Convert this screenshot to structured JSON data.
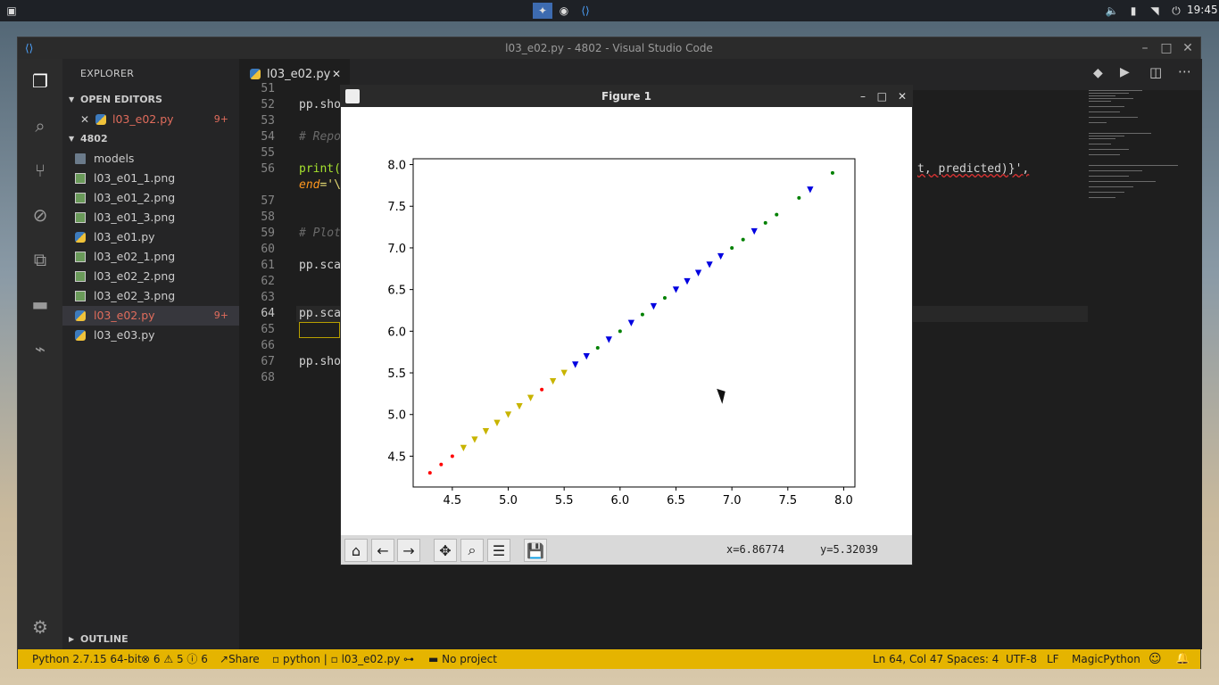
{
  "topbar": {
    "clock": "19:45"
  },
  "window": {
    "title": "l03_e02.py - 4802 - Visual Studio Code"
  },
  "sidebar": {
    "title": "EXPLORER",
    "open_editors_label": "OPEN EDITORS",
    "open_editor": {
      "name": "l03_e02.py",
      "badge": "9+"
    },
    "folder_label": "4802",
    "files": [
      {
        "name": "models",
        "type": "folder"
      },
      {
        "name": "l03_e01_1.png",
        "type": "png"
      },
      {
        "name": "l03_e01_2.png",
        "type": "png"
      },
      {
        "name": "l03_e01_3.png",
        "type": "png"
      },
      {
        "name": "l03_e01.py",
        "type": "py"
      },
      {
        "name": "l03_e02_1.png",
        "type": "png"
      },
      {
        "name": "l03_e02_2.png",
        "type": "png"
      },
      {
        "name": "l03_e02_3.png",
        "type": "png"
      },
      {
        "name": "l03_e02.py",
        "type": "py",
        "badge": "9+"
      },
      {
        "name": "l03_e03.py",
        "type": "py"
      }
    ],
    "outline_label": "OUTLINE"
  },
  "editor": {
    "tab_label": "l03_e02.py",
    "line_numbers": [
      "51",
      "52",
      "53",
      "54",
      "55",
      "56",
      "",
      "57",
      "58",
      "59",
      "60",
      "61",
      "62",
      "63",
      "64",
      "65",
      "66",
      "67",
      "68"
    ],
    "code": {
      "l52": "pp.sho",
      "l54": "# Repo",
      "l56a": "print(",
      "l56b": "t, predicted)}',",
      "l56c_kw": "end",
      "l56c_rest": "='\\",
      "l59": "# Plot",
      "l61": "pp.sca",
      "l64": "pp.sca",
      "l67": "pp.sho"
    }
  },
  "status": {
    "python": "Python 2.7.15 64-bit",
    "errors": "6",
    "warnings": "5",
    "infos": "6",
    "share": "Share",
    "env": "python",
    "file": "l03_e02.py",
    "project": "No project",
    "position": "Ln 64, Col 47",
    "spaces": "Spaces: 4",
    "encoding": "UTF-8",
    "eol": "LF",
    "language": "MagicPython"
  },
  "figure": {
    "title": "Figure 1",
    "coord_x": "x=6.86774",
    "coord_y": "y=5.32039"
  },
  "chart_data": {
    "type": "scatter",
    "title": "",
    "xlabel": "",
    "ylabel": "",
    "xlim": [
      4.15,
      8.1
    ],
    "ylim": [
      4.13,
      8.07
    ],
    "xticks": [
      4.5,
      5.0,
      5.5,
      6.0,
      6.5,
      7.0,
      7.5,
      8.0
    ],
    "yticks": [
      4.5,
      5.0,
      5.5,
      6.0,
      6.5,
      7.0,
      7.5,
      8.0
    ],
    "tick_labels_x": [
      "4.5",
      "5.0",
      "5.5",
      "6.0",
      "6.5",
      "7.0",
      "7.5",
      "8.0"
    ],
    "tick_labels_y": [
      "4.5",
      "5.0",
      "5.5",
      "6.0",
      "6.5",
      "7.0",
      "7.5",
      "8.0"
    ],
    "grid": false,
    "series": [
      {
        "color": "#ff0000",
        "marker": "dot",
        "x": [
          4.3,
          4.4,
          4.5,
          5.3
        ],
        "y": [
          4.3,
          4.4,
          4.5,
          5.3
        ]
      },
      {
        "color": "#c8b400",
        "marker": "tri_down",
        "x": [
          4.6,
          4.7,
          4.8,
          4.9,
          5.0,
          5.1,
          5.2,
          5.4,
          5.5
        ],
        "y": [
          4.6,
          4.7,
          4.8,
          4.9,
          5.0,
          5.1,
          5.2,
          5.4,
          5.5
        ]
      },
      {
        "color": "#008000",
        "marker": "dot",
        "x": [
          5.8,
          6.0,
          6.2,
          6.4,
          7.0,
          7.1,
          7.3,
          7.4,
          7.6,
          7.9
        ],
        "y": [
          5.8,
          6.0,
          6.2,
          6.4,
          7.0,
          7.1,
          7.3,
          7.4,
          7.6,
          7.9
        ]
      },
      {
        "color": "#0000e0",
        "marker": "tri_down",
        "x": [
          5.6,
          5.7,
          5.9,
          6.1,
          6.3,
          6.5,
          6.6,
          6.7,
          6.8,
          6.9,
          7.2,
          7.7
        ],
        "y": [
          5.6,
          5.7,
          5.9,
          6.1,
          6.3,
          6.5,
          6.6,
          6.7,
          6.8,
          6.9,
          7.2,
          7.7
        ]
      }
    ]
  }
}
